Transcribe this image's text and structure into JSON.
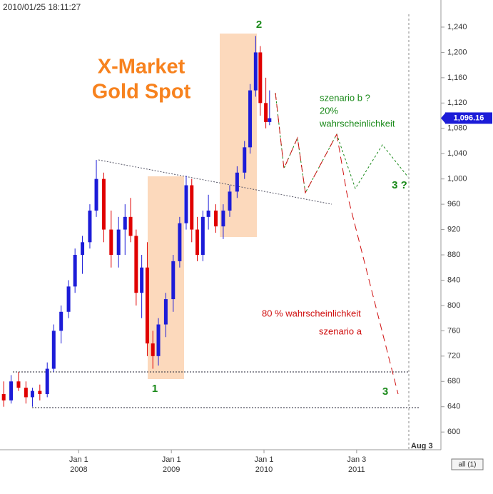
{
  "chart_data": {
    "type": "candlestick",
    "timestamp": "2010/01/25 18:11:27",
    "title_lines": [
      "X-Market",
      "Gold Spot"
    ],
    "wave_labels": [
      "1",
      "2",
      "3",
      "3 ?"
    ],
    "scenario_b": [
      "szenario b ?",
      "20%",
      "wahrscheinlichkeit"
    ],
    "scenario_a": [
      "80 % wahrscheinlichkeit",
      "szenario a"
    ],
    "end_marker": "Aug 3",
    "range_button": "all (1)",
    "last_price": {
      "value": 1096.16,
      "label": "1,096.16"
    },
    "up_color": "#1c1cd8",
    "down_color": "#e00000",
    "x": [
      2007.19,
      2007.27,
      2007.35,
      2007.43,
      2007.5,
      2007.58,
      2007.66,
      2007.73,
      2007.81,
      2007.89,
      2007.96,
      2008.04,
      2008.12,
      2008.19,
      2008.27,
      2008.35,
      2008.43,
      2008.5,
      2008.56,
      2008.62,
      2008.68,
      2008.74,
      2008.8,
      2008.86,
      2008.94,
      2009.02,
      2009.09,
      2009.16,
      2009.22,
      2009.28,
      2009.34,
      2009.4,
      2009.48,
      2009.56,
      2009.63,
      2009.71,
      2009.79,
      2009.85,
      2009.91,
      2009.96,
      2010.02,
      2010.06
    ],
    "open": [
      660,
      650,
      680,
      670,
      655,
      665,
      660,
      700,
      760,
      790,
      830,
      880,
      900,
      950,
      1000,
      920,
      880,
      920,
      940,
      910,
      820,
      860,
      740,
      720,
      770,
      810,
      870,
      930,
      990,
      920,
      880,
      940,
      950,
      925,
      950,
      980,
      1010,
      1050,
      1140,
      1200,
      1120,
      1090
    ],
    "high": [
      680,
      690,
      695,
      680,
      670,
      675,
      710,
      770,
      800,
      840,
      890,
      910,
      960,
      1030,
      1010,
      950,
      940,
      960,
      970,
      920,
      880,
      900,
      760,
      780,
      820,
      880,
      940,
      1005,
      1000,
      940,
      950,
      975,
      960,
      960,
      990,
      1020,
      1060,
      1150,
      1226,
      1210,
      1160,
      1140
    ],
    "low": [
      640,
      645,
      665,
      645,
      640,
      650,
      655,
      695,
      740,
      780,
      820,
      850,
      890,
      940,
      900,
      860,
      860,
      880,
      900,
      800,
      780,
      720,
      700,
      705,
      750,
      790,
      860,
      920,
      900,
      870,
      870,
      920,
      915,
      905,
      940,
      970,
      1000,
      1040,
      1130,
      1100,
      1080,
      1085
    ],
    "close": [
      650,
      680,
      670,
      655,
      665,
      660,
      700,
      760,
      790,
      830,
      880,
      900,
      950,
      1000,
      920,
      880,
      920,
      940,
      910,
      820,
      860,
      740,
      720,
      770,
      810,
      870,
      930,
      990,
      920,
      880,
      940,
      950,
      925,
      950,
      980,
      1010,
      1050,
      1140,
      1200,
      1120,
      1090,
      1096
    ],
    "xlim": [
      2007.15,
      2011.91
    ],
    "xticks": [
      {
        "value": 2008,
        "label": "Jan 1"
      },
      {
        "value": 2009,
        "label": "Jan 1"
      },
      {
        "value": 2010,
        "label": "Jan 1"
      },
      {
        "value": 2011,
        "label": "Jan 3"
      }
    ],
    "xtick_years": [
      "2008",
      "2009",
      "2010",
      "2011"
    ],
    "ylim": [
      572,
      1258
    ],
    "yticks": [
      600,
      640,
      680,
      720,
      760,
      800,
      840,
      880,
      920,
      960,
      {
        "value": 1000,
        "label": "1,000"
      },
      {
        "value": 1040,
        "label": "1,040"
      },
      {
        "value": 1080,
        "label": "1,080"
      },
      {
        "value": 1120,
        "label": "1,120"
      },
      {
        "value": 1160,
        "label": "1,160"
      },
      {
        "value": 1200,
        "label": "1,200"
      },
      {
        "value": 1240,
        "label": "1,240"
      }
    ]
  }
}
